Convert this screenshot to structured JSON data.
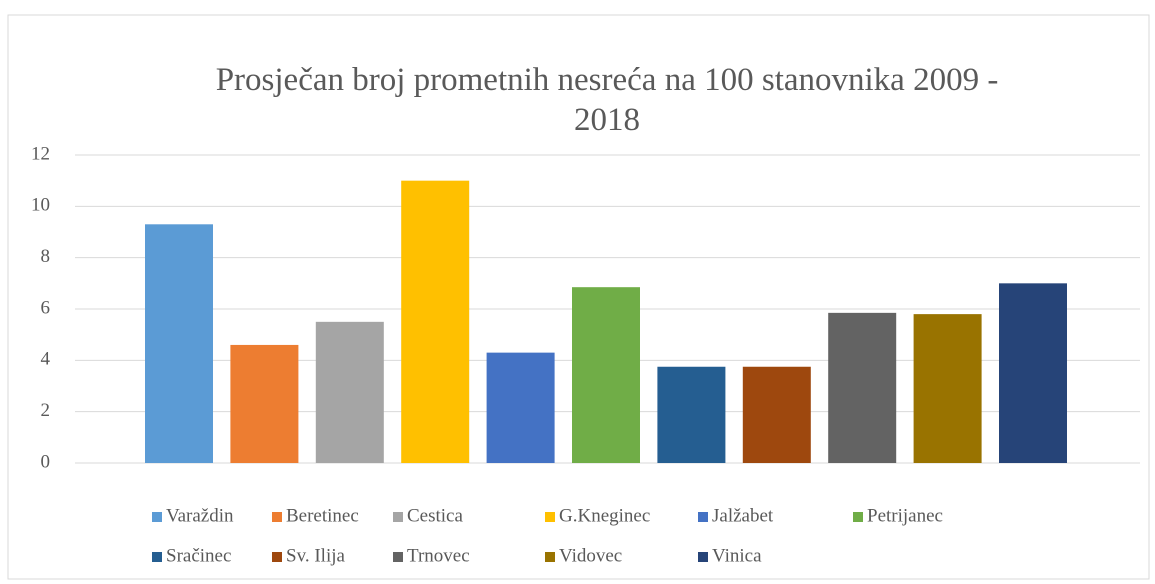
{
  "chart_data": {
    "type": "bar",
    "title": "Prosječan broj prometnih nesreća na 100 stanovnika 2009 - 2018",
    "categories": [
      null
    ],
    "series": [
      {
        "name": "Varaždin",
        "color": "#5b9bd5",
        "values": [
          9.3
        ]
      },
      {
        "name": "Beretinec",
        "color": "#ed7d31",
        "values": [
          4.6
        ]
      },
      {
        "name": "Cestica",
        "color": "#a5a5a5",
        "values": [
          5.5
        ]
      },
      {
        "name": "G.Kneginec",
        "color": "#ffc000",
        "values": [
          11.0
        ]
      },
      {
        "name": "Jalžabet",
        "color": "#4472c4",
        "values": [
          4.3
        ]
      },
      {
        "name": "Petrijanec",
        "color": "#70ad47",
        "values": [
          6.85
        ]
      },
      {
        "name": "Sračinec",
        "color": "#255e91",
        "values": [
          3.75
        ]
      },
      {
        "name": "Sv. Ilija",
        "color": "#9e480e",
        "values": [
          3.75
        ]
      },
      {
        "name": "Trnovec",
        "color": "#636363",
        "values": [
          5.85
        ]
      },
      {
        "name": "Vidovec",
        "color": "#997300",
        "values": [
          5.8
        ]
      },
      {
        "name": "Vinica",
        "color": "#264478",
        "values": [
          7.0
        ]
      }
    ],
    "ylim": [
      0,
      12
    ],
    "yticks": [
      0,
      2,
      4,
      6,
      8,
      10,
      12
    ],
    "grid": true,
    "legend": "bottom"
  }
}
